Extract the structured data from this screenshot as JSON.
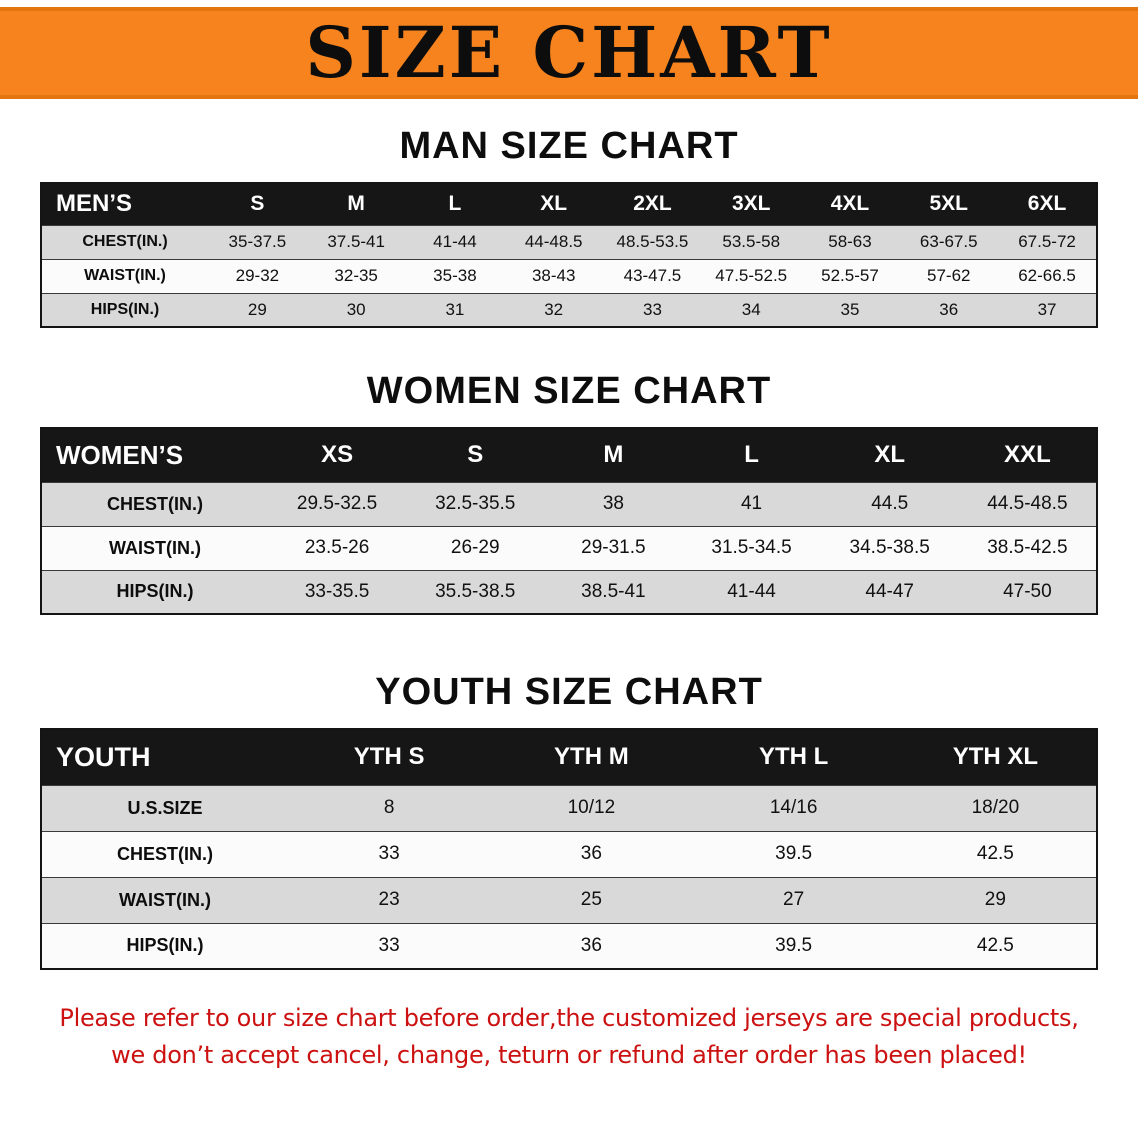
{
  "banner": {
    "title": "SIZE CHART"
  },
  "colors": {
    "banner_orange": "#F6831D",
    "table_header_black": "#161616",
    "row_gray": "#D9D9D9",
    "footer_red": "#CC1111"
  },
  "sections": [
    {
      "heading": "MAN SIZE CHART",
      "table": {
        "header_label": "MEN’S",
        "columns": [
          "S",
          "M",
          "L",
          "XL",
          "2XL",
          "3XL",
          "4XL",
          "5XL",
          "6XL"
        ],
        "rows": [
          {
            "label": "CHEST(IN.)",
            "values": [
              "35-37.5",
              "37.5-41",
              "41-44",
              "44-48.5",
              "48.5-53.5",
              "53.5-58",
              "58-63",
              "63-67.5",
              "67.5-72"
            ]
          },
          {
            "label": "WAIST(IN.)",
            "values": [
              "29-32",
              "32-35",
              "35-38",
              "38-43",
              "43-47.5",
              "47.5-52.5",
              "52.5-57",
              "57-62",
              "62-66.5"
            ]
          },
          {
            "label": "HIPS(IN.)",
            "values": [
              "29",
              "30",
              "31",
              "32",
              "33",
              "34",
              "35",
              "36",
              "37"
            ]
          }
        ]
      }
    },
    {
      "heading": "WOMEN SIZE CHART",
      "table": {
        "header_label": "WOMEN’S",
        "columns": [
          "XS",
          "S",
          "M",
          "L",
          "XL",
          "XXL"
        ],
        "rows": [
          {
            "label": "CHEST(IN.)",
            "values": [
              "29.5-32.5",
              "32.5-35.5",
              "38",
              "41",
              "44.5",
              "44.5-48.5"
            ]
          },
          {
            "label": "WAIST(IN.)",
            "values": [
              "23.5-26",
              "26-29",
              "29-31.5",
              "31.5-34.5",
              "34.5-38.5",
              "38.5-42.5"
            ]
          },
          {
            "label": "HIPS(IN.)",
            "values": [
              "33-35.5",
              "35.5-38.5",
              "38.5-41",
              "41-44",
              "44-47",
              "47-50"
            ]
          }
        ]
      }
    },
    {
      "heading": "YOUTH SIZE CHART",
      "table": {
        "header_label": "YOUTH",
        "columns": [
          "YTH S",
          "YTH M",
          "YTH L",
          "YTH XL"
        ],
        "rows": [
          {
            "label": "U.S.SIZE",
            "values": [
              "8",
              "10/12",
              "14/16",
              "18/20"
            ]
          },
          {
            "label": "CHEST(IN.)",
            "values": [
              "33",
              "36",
              "39.5",
              "42.5"
            ]
          },
          {
            "label": "WAIST(IN.)",
            "values": [
              "23",
              "25",
              "27",
              "29"
            ]
          },
          {
            "label": "HIPS(IN.)",
            "values": [
              "33",
              "36",
              "39.5",
              "42.5"
            ]
          }
        ]
      }
    }
  ],
  "footer": {
    "lines": [
      "Please refer to our size chart before order,the customized jerseys are special products,",
      "we don’t accept cancel, change, teturn or refund after order has been placed!"
    ]
  }
}
